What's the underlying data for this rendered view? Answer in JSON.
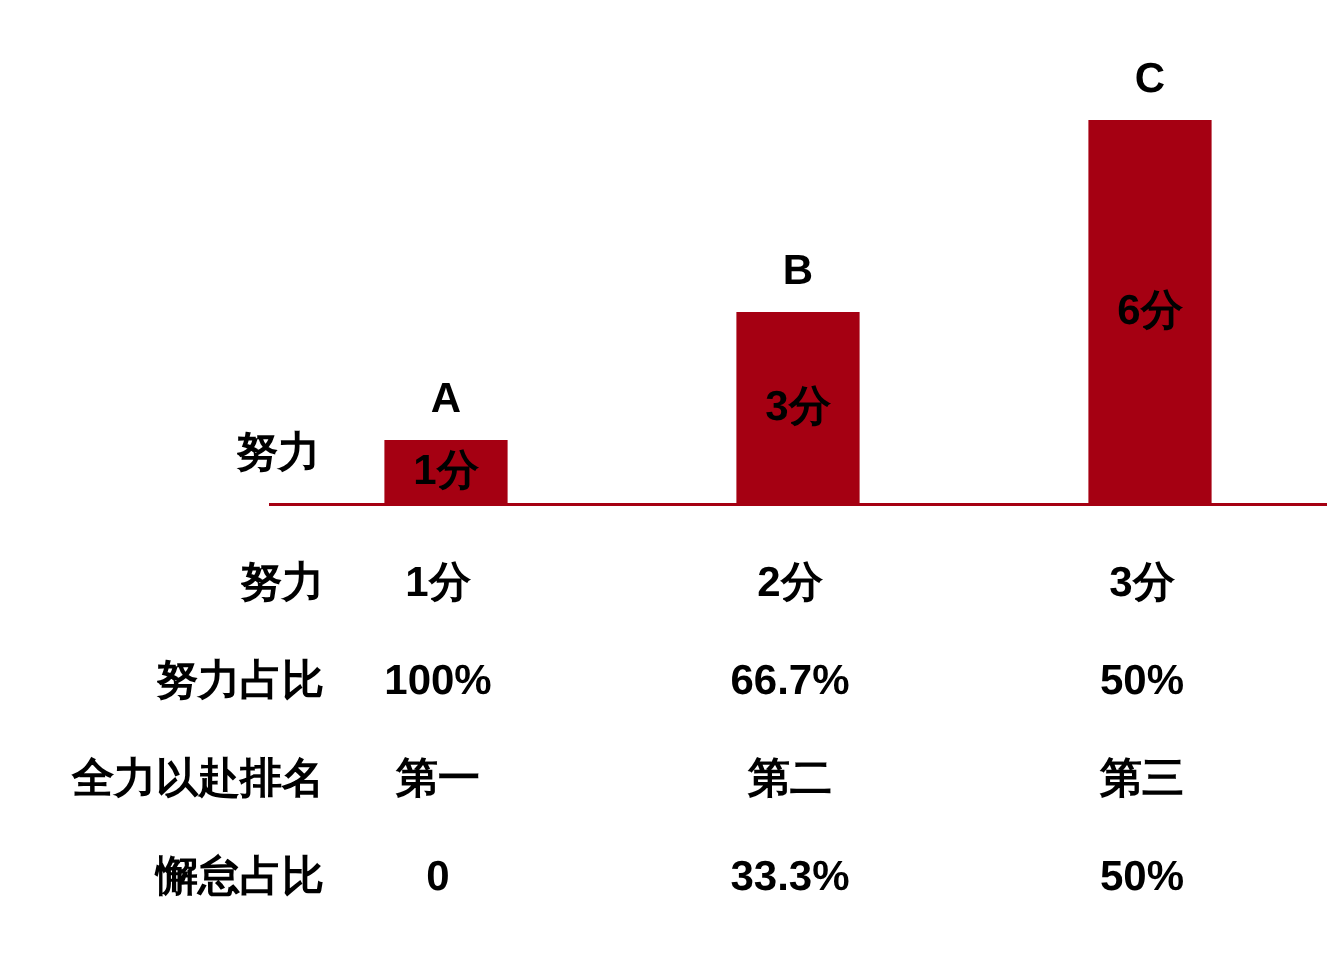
{
  "chart_data": {
    "type": "bar",
    "categories": [
      "A",
      "B",
      "C"
    ],
    "values": [
      1,
      3,
      6
    ],
    "value_labels": [
      "1分",
      "3分",
      "6分"
    ],
    "color": "#a50012",
    "ylabel": "努力",
    "grid": false,
    "legend": false,
    "annotations": [
      "努力",
      "1分",
      "2分",
      "3分",
      "努力占比",
      "100%",
      "66.7%",
      "50%",
      "全力以赴排名",
      "第一",
      "第二",
      "第三",
      "懈怠占比",
      "0",
      "33.3%",
      "50%"
    ]
  }
}
